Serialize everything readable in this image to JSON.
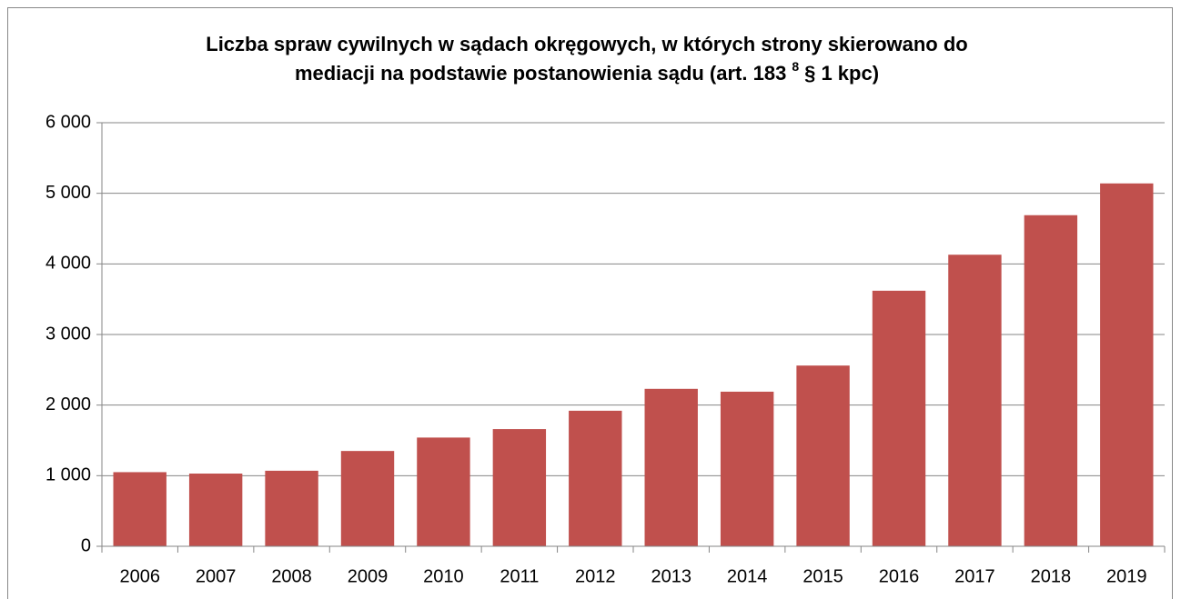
{
  "chart_data": {
    "type": "bar",
    "title": [
      "Liczba spraw cywilnych w sądach okręgowych, w których strony skierowano do",
      "mediacji na podstawie postanowienia sądu (art. 183",
      "8",
      "§ 1 kpc)"
    ],
    "categories": [
      "2006",
      "2007",
      "2008",
      "2009",
      "2010",
      "2011",
      "2012",
      "2013",
      "2014",
      "2015",
      "2016",
      "2017",
      "2018",
      "2019"
    ],
    "values": [
      1050,
      1030,
      1070,
      1350,
      1540,
      1660,
      1920,
      2230,
      2190,
      2560,
      3620,
      4130,
      4690,
      5140
    ],
    "color": "#c0504d",
    "ylim": [
      0,
      6000
    ],
    "yticks": [
      0,
      {
        "value": 1000,
        "label": "1 000"
      },
      {
        "value": 2000,
        "label": "2 000"
      },
      {
        "value": 3000,
        "label": "3 000"
      },
      {
        "value": 4000,
        "label": "4 000"
      },
      {
        "value": 5000,
        "label": "5 000"
      },
      {
        "value": 6000,
        "label": "6 000"
      }
    ],
    "grid": true
  }
}
